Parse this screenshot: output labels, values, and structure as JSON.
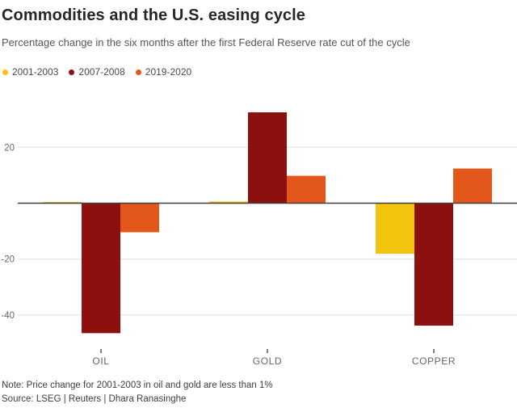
{
  "header": {
    "title": "Commodities and the U.S. easing cycle",
    "subtitle": "Percentage change in the six months after the first Federal Reserve rate cut of the cycle"
  },
  "chart_data": {
    "type": "bar",
    "title": "Commodities and the U.S. easing cycle",
    "subtitle": "Percentage change in the six months after the first Federal Reserve rate cut of the cycle",
    "categories": [
      "OIL",
      "GOLD",
      "COPPER"
    ],
    "series": [
      {
        "name": "2001-2003",
        "color": "#F2C40D",
        "values": [
          0.4,
          0.6,
          -18.1
        ]
      },
      {
        "name": "2007-2008",
        "color": "#8C110E",
        "values": [
          -46.5,
          32.5,
          -43.8
        ]
      },
      {
        "name": "2019-2020",
        "color": "#E4571B",
        "values": [
          -10.4,
          9.8,
          12.4
        ]
      }
    ],
    "xlabel": "",
    "ylabel": "",
    "ylim": [
      -48,
      41
    ],
    "yticks": [
      20,
      -20,
      -40
    ],
    "grid": true,
    "legend_position": "top-left"
  },
  "footer": {
    "note": "Note: Price change for 2001-2003 in oil and gold are less than 1%",
    "source": "Source: LSEG | Reuters | Dhara Ranasinghe"
  },
  "colors": {
    "gridline": "#DDDDDD",
    "zero_line": "#3F3F3F",
    "axis_text": "#666666",
    "category_label": "#666666",
    "tick_mark": "#555555"
  }
}
